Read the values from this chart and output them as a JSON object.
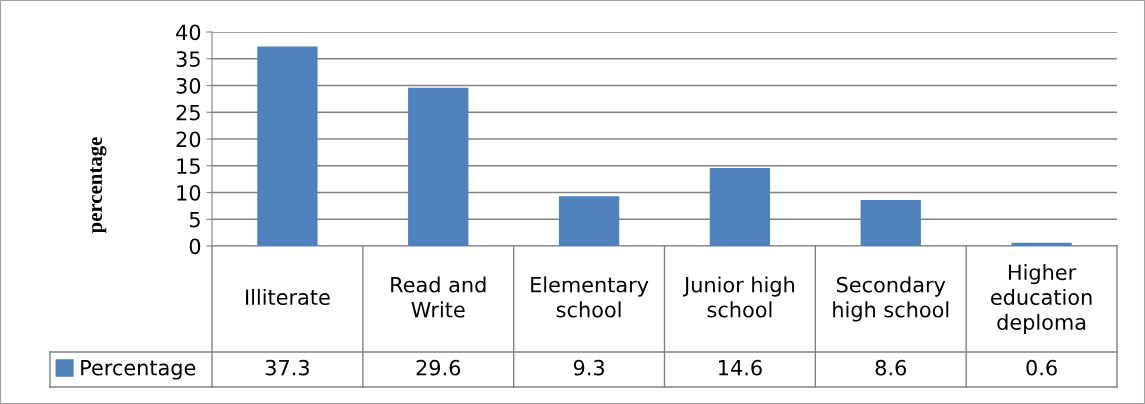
{
  "chart_data": {
    "type": "bar",
    "ylabel": "percentage",
    "categories": [
      "Illiterate",
      "Read and Write",
      "Elementary school",
      "Junior high school",
      "Secondary high school",
      "Higher education deploma"
    ],
    "series": [
      {
        "name": "Percentage",
        "color": "#4f81bd",
        "values": [
          37.3,
          29.6,
          9.3,
          14.6,
          8.6,
          0.6
        ]
      }
    ],
    "ylim": [
      0,
      40
    ],
    "yticks": [
      0,
      5,
      10,
      15,
      20,
      25,
      30,
      35,
      40
    ],
    "grid": "y",
    "legend": "bottom left",
    "data_labels": true
  }
}
